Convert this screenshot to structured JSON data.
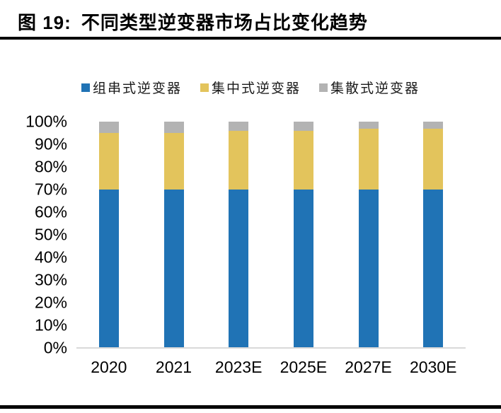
{
  "header": {
    "figure_label": "图 19:",
    "title": "不同类型逆变器市场占比变化趋势"
  },
  "chart_data": {
    "type": "bar",
    "stacked": true,
    "title": "不同类型逆变器市场占比变化趋势",
    "categories": [
      "2020",
      "2021",
      "2023E",
      "2025E",
      "2027E",
      "2030E"
    ],
    "series": [
      {
        "key": "string",
        "name": "组串式逆变器",
        "color": "#2073B5",
        "values": [
          70,
          70,
          70,
          70,
          70,
          70
        ]
      },
      {
        "key": "central",
        "name": "集中式逆变器",
        "color": "#E3C45C",
        "values": [
          25,
          25,
          26,
          26,
          27,
          27
        ]
      },
      {
        "key": "distributed",
        "name": "集散式逆变器",
        "color": "#B3B3B3",
        "values": [
          5,
          5,
          4,
          4,
          3,
          3
        ]
      }
    ],
    "unit": "%",
    "ylim": [
      0,
      100
    ],
    "yticks": [
      "100%",
      "90%",
      "80%",
      "70%",
      "60%",
      "50%",
      "40%",
      "30%",
      "20%",
      "10%",
      "0%"
    ],
    "grid": false,
    "legend_position": "top",
    "axis_line_color": "#D9D9D9"
  }
}
